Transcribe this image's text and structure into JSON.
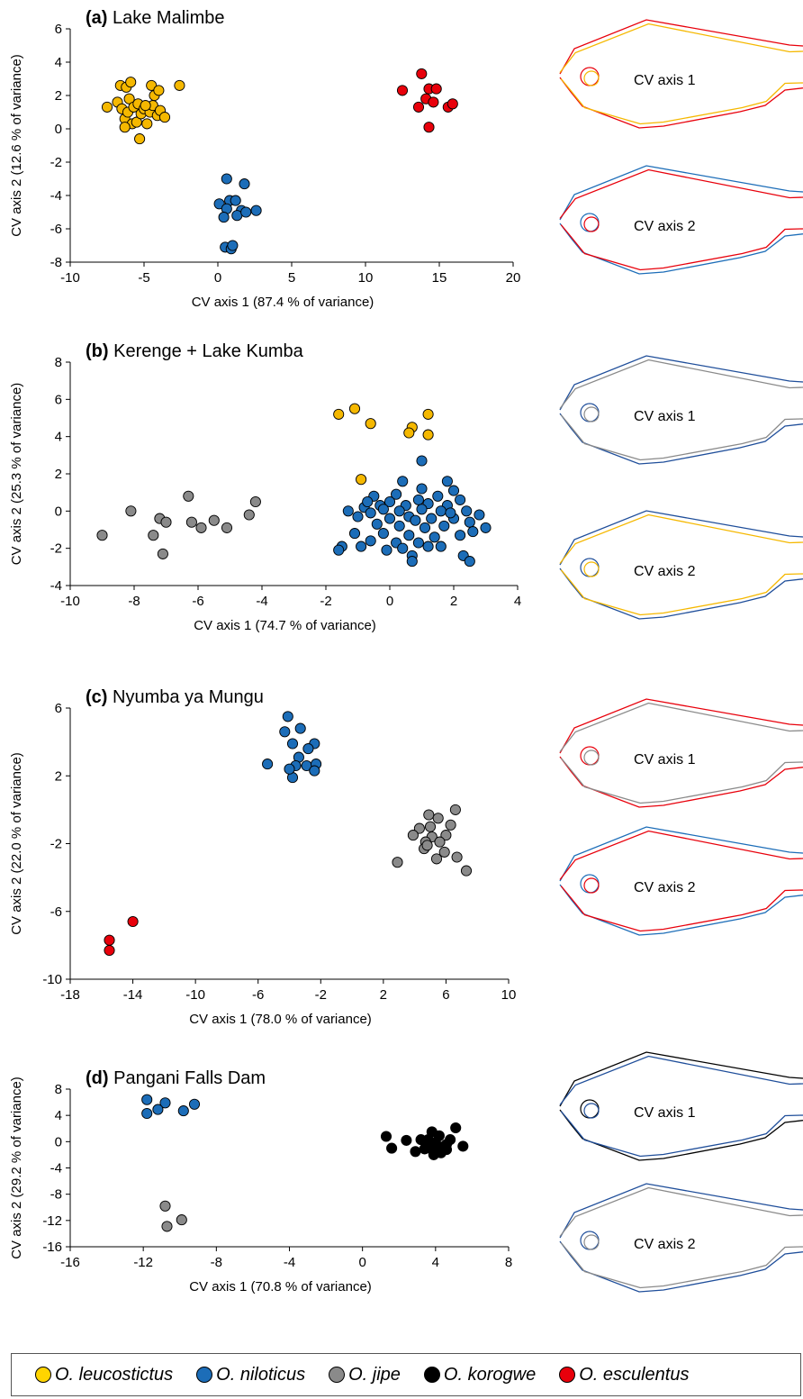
{
  "colors": {
    "O. leucostictus": "#F5B800",
    "O. niloticus": "#1C6DB8",
    "O. jipe": "#8A8A8A",
    "O. korogwe": "#000000",
    "O. esculentus": "#E8000B",
    "leucostictus_outline": "#FFD400"
  },
  "legend": [
    {
      "label": "O. leucostictus",
      "color_key": "leucostictus_outline"
    },
    {
      "label": "O. niloticus",
      "color_key": "O. niloticus"
    },
    {
      "label": "O. jipe",
      "color_key": "O. jipe"
    },
    {
      "label": "O. korogwe",
      "color_key": "O. korogwe"
    },
    {
      "label": "O. esculentus",
      "color_key": "O. esculentus"
    }
  ],
  "chart_data": [
    {
      "type": "scatter",
      "panel": "(a)",
      "title": "Lake Malimbe",
      "xlabel": "CV axis 1 (87.4 % of variance)",
      "ylabel": "CV axis 2 (12.6 % of variance)",
      "xlim": [
        -10,
        20
      ],
      "ylim": [
        -8,
        6
      ],
      "xticks": [
        -10,
        -5,
        0,
        5,
        10,
        15,
        20
      ],
      "yticks": [
        -8,
        -6,
        -4,
        -2,
        0,
        2,
        4,
        6
      ],
      "grid": false,
      "shape_labels": [
        "CV axis 1",
        "CV axis 2"
      ],
      "series": [
        {
          "name": "O. leucostictus",
          "points": [
            [
              -7.5,
              1.3
            ],
            [
              -6.8,
              1.6
            ],
            [
              -6.6,
              2.6
            ],
            [
              -6.5,
              1.2
            ],
            [
              -6.3,
              0.6
            ],
            [
              -6.2,
              2.5
            ],
            [
              -6.1,
              1.0
            ],
            [
              -6,
              1.8
            ],
            [
              -5.9,
              2.8
            ],
            [
              -5.8,
              0.3
            ],
            [
              -5.7,
              1.3
            ],
            [
              -5.5,
              0.4
            ],
            [
              -5.4,
              1.5
            ],
            [
              -5.3,
              -0.6
            ],
            [
              -5.2,
              0.9
            ],
            [
              -5,
              1.2
            ],
            [
              -4.8,
              0.3
            ],
            [
              -4.6,
              1.0
            ],
            [
              -4.5,
              2.6
            ],
            [
              -4.4,
              1.4
            ],
            [
              -4.3,
              2.0
            ],
            [
              -4.1,
              0.8
            ],
            [
              -4,
              2.3
            ],
            [
              -3.9,
              1.1
            ],
            [
              -3.6,
              0.7
            ],
            [
              -2.6,
              2.6
            ],
            [
              -6.3,
              0.1
            ],
            [
              -4.9,
              1.4
            ]
          ]
        },
        {
          "name": "O. niloticus",
          "points": [
            [
              0.6,
              -3.0
            ],
            [
              1.8,
              -3.3
            ],
            [
              0.1,
              -4.5
            ],
            [
              0.8,
              -4.3
            ],
            [
              1.2,
              -4.3
            ],
            [
              0.6,
              -4.8
            ],
            [
              1.6,
              -4.9
            ],
            [
              1.3,
              -5.2
            ],
            [
              1.9,
              -5.0
            ],
            [
              2.6,
              -4.9
            ],
            [
              0.4,
              -5.3
            ],
            [
              0.5,
              -7.1
            ],
            [
              0.9,
              -7.2
            ],
            [
              1.0,
              -7.0
            ]
          ]
        },
        {
          "name": "O. esculentus",
          "points": [
            [
              13.8,
              3.3
            ],
            [
              12.5,
              2.3
            ],
            [
              14.3,
              2.4
            ],
            [
              14.8,
              2.4
            ],
            [
              14.1,
              1.8
            ],
            [
              14.6,
              1.6
            ],
            [
              13.6,
              1.3
            ],
            [
              15.6,
              1.3
            ],
            [
              15.9,
              1.5
            ],
            [
              14.3,
              0.1
            ]
          ]
        }
      ]
    },
    {
      "type": "scatter",
      "panel": "(b)",
      "title": "Kerenge + Lake Kumba",
      "xlabel": "CV axis 1 (74.7 % of variance)",
      "ylabel": "CV axis 2 (25.3 % of variance)",
      "xlim": [
        -10,
        4
      ],
      "ylim": [
        -4,
        8
      ],
      "xticks": [
        -10,
        -8,
        -6,
        -4,
        -2,
        0,
        2,
        4
      ],
      "yticks": [
        -4,
        -2,
        0,
        2,
        4,
        6,
        8
      ],
      "grid": false,
      "shape_labels": [
        "CV axis 1",
        "CV axis 2"
      ],
      "series": [
        {
          "name": "O. leucostictus",
          "points": [
            [
              -1.6,
              5.2
            ],
            [
              -1.1,
              5.5
            ],
            [
              -0.6,
              4.7
            ],
            [
              0.7,
              4.5
            ],
            [
              0.6,
              4.2
            ],
            [
              1.2,
              5.2
            ],
            [
              1.2,
              4.1
            ],
            [
              -0.9,
              1.7
            ]
          ]
        },
        {
          "name": "O. niloticus",
          "points": [
            [
              1.0,
              2.7
            ],
            [
              0.4,
              1.6
            ],
            [
              1.8,
              1.6
            ],
            [
              1.0,
              1.2
            ],
            [
              2.0,
              1.1
            ],
            [
              -0.5,
              0.8
            ],
            [
              0.2,
              0.9
            ],
            [
              0.9,
              0.6
            ],
            [
              1.5,
              0.8
            ],
            [
              -0.3,
              0.3
            ],
            [
              0.5,
              0.3
            ],
            [
              1.2,
              0.4
            ],
            [
              2.2,
              0.6
            ],
            [
              -0.8,
              0.2
            ],
            [
              0.0,
              0.5
            ],
            [
              1.8,
              0.3
            ],
            [
              -1.3,
              0.0
            ],
            [
              -0.6,
              -0.1
            ],
            [
              0.3,
              0.0
            ],
            [
              1.0,
              0.1
            ],
            [
              1.6,
              0.0
            ],
            [
              2.4,
              0.0
            ],
            [
              2.8,
              -0.2
            ],
            [
              -1.0,
              -0.3
            ],
            [
              0.0,
              -0.4
            ],
            [
              0.6,
              -0.3
            ],
            [
              1.3,
              -0.4
            ],
            [
              2.0,
              -0.4
            ],
            [
              -0.4,
              -0.7
            ],
            [
              0.3,
              -0.8
            ],
            [
              1.1,
              -0.9
            ],
            [
              1.7,
              -0.8
            ],
            [
              2.5,
              -0.6
            ],
            [
              3.0,
              -0.9
            ],
            [
              -1.1,
              -1.2
            ],
            [
              -0.2,
              -1.2
            ],
            [
              0.6,
              -1.3
            ],
            [
              1.4,
              -1.4
            ],
            [
              2.2,
              -1.3
            ],
            [
              -0.6,
              -1.6
            ],
            [
              0.2,
              -1.7
            ],
            [
              0.9,
              -1.7
            ],
            [
              1.6,
              -1.9
            ],
            [
              2.6,
              -1.1
            ],
            [
              -0.9,
              -1.9
            ],
            [
              0.4,
              -2.0
            ],
            [
              1.2,
              -1.9
            ],
            [
              -1.5,
              -1.9
            ],
            [
              -1.6,
              -2.1
            ],
            [
              -0.1,
              -2.1
            ],
            [
              0.7,
              -2.4
            ],
            [
              0.7,
              -2.7
            ],
            [
              2.3,
              -2.4
            ],
            [
              2.5,
              -2.7
            ],
            [
              1.9,
              -0.1
            ],
            [
              -0.7,
              0.5
            ],
            [
              0.8,
              -0.5
            ],
            [
              -0.2,
              0.1
            ]
          ]
        },
        {
          "name": "O. jipe",
          "points": [
            [
              -9.0,
              -1.3
            ],
            [
              -8.1,
              0.0
            ],
            [
              -7.4,
              -1.3
            ],
            [
              -7.2,
              -0.4
            ],
            [
              -7.0,
              -0.6
            ],
            [
              -7.1,
              -2.3
            ],
            [
              -6.3,
              0.8
            ],
            [
              -6.2,
              -0.6
            ],
            [
              -5.9,
              -0.9
            ],
            [
              -5.5,
              -0.5
            ],
            [
              -5.1,
              -0.9
            ],
            [
              -4.4,
              -0.2
            ],
            [
              -4.2,
              0.5
            ]
          ]
        }
      ]
    },
    {
      "type": "scatter",
      "panel": "(c)",
      "title": "Nyumba ya Mungu",
      "xlabel": "CV axis 1 (78.0 % of variance)",
      "ylabel": "CV axis 2 (22.0 % of variance)",
      "xlim": [
        -18,
        10
      ],
      "ylim": [
        -10,
        6
      ],
      "xticks": [
        -18,
        -14,
        -10,
        -6,
        -2,
        2,
        6,
        10
      ],
      "yticks": [
        -10,
        -6,
        -2,
        2,
        6
      ],
      "grid": false,
      "shape_labels": [
        "CV axis 1",
        "CV axis 2"
      ],
      "series": [
        {
          "name": "O. niloticus",
          "points": [
            [
              -4.1,
              5.5
            ],
            [
              -4.3,
              4.6
            ],
            [
              -3.3,
              4.8
            ],
            [
              -3.8,
              3.9
            ],
            [
              -2.4,
              3.9
            ],
            [
              -3.4,
              3.1
            ],
            [
              -2.8,
              3.6
            ],
            [
              -5.4,
              2.7
            ],
            [
              -3.6,
              2.6
            ],
            [
              -2.9,
              2.6
            ],
            [
              -2.3,
              2.7
            ],
            [
              -2.4,
              2.3
            ],
            [
              -3.8,
              1.9
            ],
            [
              -4.0,
              2.4
            ]
          ]
        },
        {
          "name": "O. jipe",
          "points": [
            [
              4.9,
              -0.3
            ],
            [
              5.5,
              -0.5
            ],
            [
              6.6,
              0.0
            ],
            [
              6.3,
              -0.9
            ],
            [
              5.0,
              -1.0
            ],
            [
              4.3,
              -1.1
            ],
            [
              3.9,
              -1.5
            ],
            [
              5.1,
              -1.6
            ],
            [
              6.0,
              -1.5
            ],
            [
              5.6,
              -1.9
            ],
            [
              4.7,
              -1.9
            ],
            [
              4.6,
              -2.3
            ],
            [
              5.9,
              -2.5
            ],
            [
              5.4,
              -2.9
            ],
            [
              6.7,
              -2.8
            ],
            [
              2.9,
              -3.1
            ],
            [
              7.3,
              -3.6
            ],
            [
              4.8,
              -2.1
            ]
          ]
        },
        {
          "name": "O. esculentus",
          "points": [
            [
              -14.0,
              -6.6
            ],
            [
              -15.5,
              -7.7
            ],
            [
              -15.5,
              -8.3
            ]
          ]
        }
      ]
    },
    {
      "type": "scatter",
      "panel": "(d)",
      "title": "Pangani Falls Dam",
      "xlabel": "CV axis 1 (70.8 % of variance)",
      "ylabel": "CV axis 2 (29.2 % of variance)",
      "xlim": [
        -16,
        8
      ],
      "ylim": [
        -16,
        8
      ],
      "xticks": [
        -16,
        -12,
        -8,
        -4,
        0,
        4,
        8
      ],
      "yticks": [
        -16,
        -12,
        -8,
        -4,
        0,
        4,
        8
      ],
      "grid": false,
      "shape_labels": [
        "CV axis 1",
        "CV axis 2"
      ],
      "series": [
        {
          "name": "O. niloticus",
          "points": [
            [
              -11.8,
              6.4
            ],
            [
              -10.8,
              5.9
            ],
            [
              -9.2,
              5.7
            ],
            [
              -11.2,
              4.9
            ],
            [
              -11.8,
              4.3
            ],
            [
              -9.8,
              4.7
            ]
          ]
        },
        {
          "name": "O. jipe",
          "points": [
            [
              -10.8,
              -9.8
            ],
            [
              -9.9,
              -11.9
            ],
            [
              -10.7,
              -12.9
            ]
          ]
        },
        {
          "name": "O. korogwe",
          "points": [
            [
              1.3,
              0.8
            ],
            [
              2.4,
              0.2
            ],
            [
              3.2,
              0.3
            ],
            [
              3.8,
              1.5
            ],
            [
              4.2,
              0.9
            ],
            [
              5.1,
              2.1
            ],
            [
              3.6,
              0.3
            ],
            [
              4.0,
              -0.1
            ],
            [
              4.6,
              -0.4
            ],
            [
              5.5,
              -0.7
            ],
            [
              3.4,
              -1.1
            ],
            [
              4.1,
              -1.4
            ],
            [
              4.6,
              -1.2
            ],
            [
              3.9,
              -2.0
            ],
            [
              2.9,
              -1.5
            ],
            [
              1.6,
              -1.0
            ],
            [
              4.4,
              -0.8
            ],
            [
              3.7,
              -1.0
            ],
            [
              4.8,
              0.3
            ],
            [
              4.3,
              -1.7
            ]
          ]
        }
      ]
    }
  ]
}
